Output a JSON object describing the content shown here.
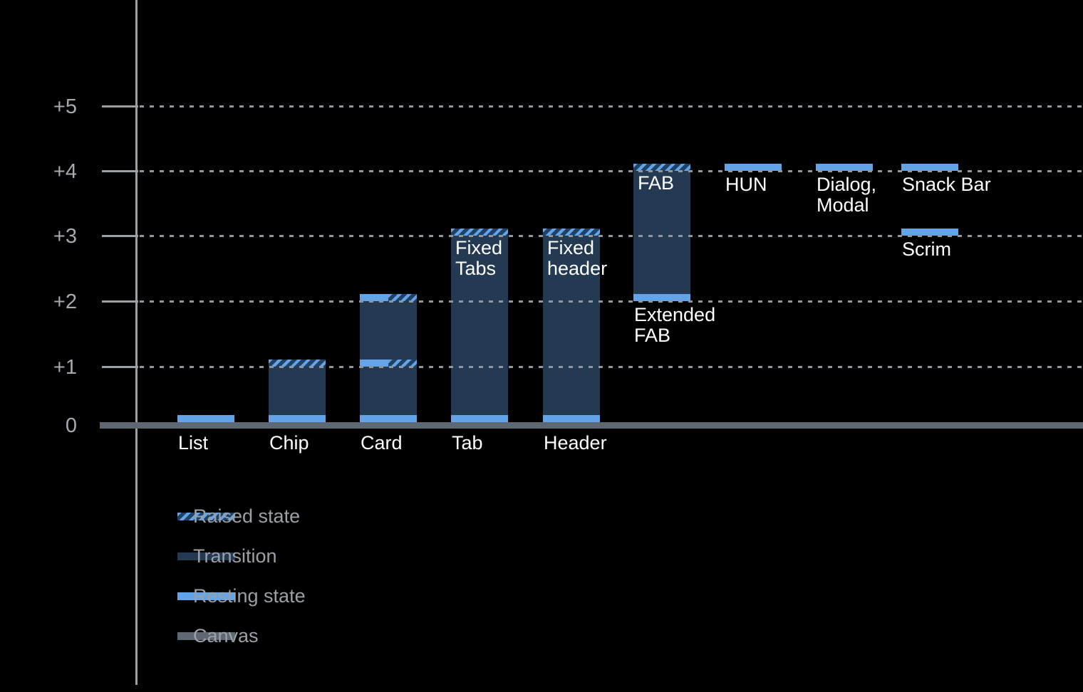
{
  "colors": {
    "background": "#000000",
    "resting": "#63a4e9",
    "transition": "#243952",
    "hatch_base": "#1e4164",
    "canvas": "#5e6872",
    "axis_line": "#9aa0a6",
    "grid_dot": "#8f969d",
    "tick_label": "#a5aab0",
    "bar_label": "#ffffff",
    "legend_text": "#9aa0a6"
  },
  "chart_data": {
    "type": "bar",
    "title": "",
    "y_axis": {
      "ticks": [
        {
          "label": "+5",
          "value": 5
        },
        {
          "label": "+4",
          "value": 4
        },
        {
          "label": "+3",
          "value": 3
        },
        {
          "label": "+2",
          "value": 2
        },
        {
          "label": "+1",
          "value": 1
        },
        {
          "label": "0",
          "value": 0
        }
      ],
      "ylim": [
        0,
        5
      ],
      "grid": "dotted",
      "baseline": "canvas"
    },
    "components": [
      {
        "name": "list",
        "axis_label": "List",
        "segments": [
          {
            "kind": "resting",
            "from": 0,
            "to": 0.1
          }
        ]
      },
      {
        "name": "chip",
        "axis_label": "Chip",
        "segments": [
          {
            "kind": "resting",
            "from": 0,
            "to": 0.1
          },
          {
            "kind": "transition",
            "from": 0.1,
            "to": 1
          },
          {
            "kind": "raised",
            "from": 1,
            "to": 1.1
          }
        ]
      },
      {
        "name": "card",
        "axis_label": "Card",
        "segments": [
          {
            "kind": "resting",
            "from": 0,
            "to": 0.1
          },
          {
            "kind": "transition",
            "from": 0.1,
            "to": 2
          },
          {
            "kind": "split",
            "from": 1,
            "to": 1.1
          },
          {
            "kind": "split",
            "from": 2,
            "to": 2.1
          }
        ]
      },
      {
        "name": "tab",
        "axis_label": "Tab",
        "inner_label": [
          "Fixed",
          "Tabs"
        ],
        "segments": [
          {
            "kind": "resting",
            "from": 0,
            "to": 0.1
          },
          {
            "kind": "transition",
            "from": 0.1,
            "to": 3
          },
          {
            "kind": "raised",
            "from": 3,
            "to": 3.1
          }
        ]
      },
      {
        "name": "header",
        "axis_label": "Header",
        "inner_label": [
          "Fixed",
          "header"
        ],
        "segments": [
          {
            "kind": "resting",
            "from": 0,
            "to": 0.1
          },
          {
            "kind": "transition",
            "from": 0.1,
            "to": 3
          },
          {
            "kind": "raised",
            "from": 3,
            "to": 3.1
          }
        ]
      },
      {
        "name": "fab",
        "inner_label": [
          "FAB"
        ],
        "below_label": [
          "Extended",
          "FAB"
        ],
        "segments": [
          {
            "kind": "resting",
            "from": 2,
            "to": 2.1
          },
          {
            "kind": "transition",
            "from": 2.1,
            "to": 4
          },
          {
            "kind": "raised",
            "from": 4,
            "to": 4.1
          }
        ]
      },
      {
        "name": "hun",
        "below_label": [
          "HUN"
        ],
        "segments": [
          {
            "kind": "resting",
            "from": 4,
            "to": 4.1
          }
        ]
      },
      {
        "name": "dialog-modal",
        "below_label": [
          "Dialog,",
          "Modal"
        ],
        "segments": [
          {
            "kind": "resting",
            "from": 4,
            "to": 4.1
          }
        ]
      },
      {
        "name": "snack-bar",
        "below_label": [
          "Snack Bar"
        ],
        "segments": [
          {
            "kind": "resting",
            "from": 4,
            "to": 4.1
          }
        ]
      },
      {
        "name": "scrim",
        "below_label": [
          "Scrim"
        ],
        "segments": [
          {
            "kind": "resting",
            "from": 3,
            "to": 3.1
          }
        ]
      }
    ],
    "legend": {
      "position": "bottom-left",
      "items": [
        {
          "label": "Raised state",
          "kind": "raised"
        },
        {
          "label": "Transition",
          "kind": "transition"
        },
        {
          "label": "Resting state",
          "kind": "resting"
        },
        {
          "label": "Canvas",
          "kind": "canvas"
        }
      ]
    }
  }
}
